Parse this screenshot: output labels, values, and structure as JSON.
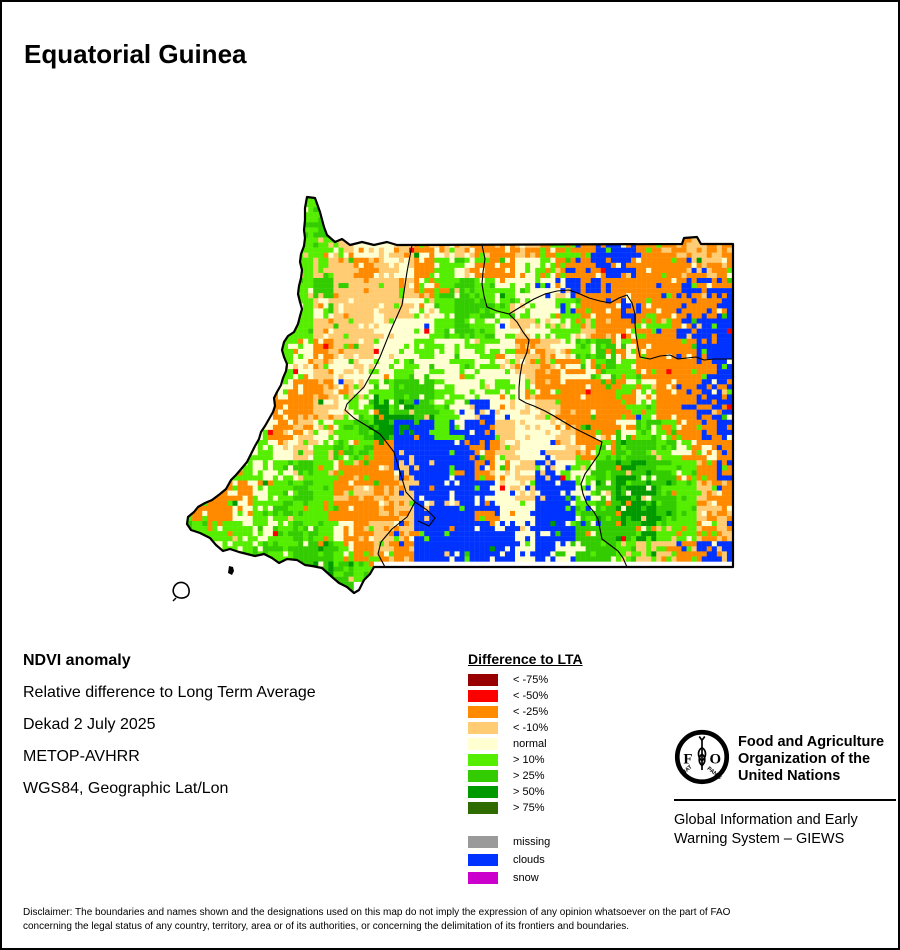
{
  "title": "Equatorial Guinea",
  "map": {
    "description": "NDVI anomaly raster map of Equatorial Guinea",
    "seed": 1337,
    "palette": {
      "d": "#990000",
      "r": "#FF0000",
      "o": "#FF8A00",
      "t": "#FFCC73",
      "n": "#FFFFD2",
      "g": "#55EE00",
      "G": "#33CC00",
      "D": "#009900",
      "F": "#2E6B00",
      "b": "#0033FF",
      "m": "#9A9A9A",
      "s": "#CC00CC"
    },
    "grid": [
      "......gg....................",
      "......gG....................",
      "......ggtnntontootogobbootot",
      "......gttotnognoongoobboooto",
      "......gGttttogGgngnbboooobbo",
      "......gnttttngGGgnngooboooob",
      ".....ggtttnnngGgntngtoogobbb",
      ".....gnottnngnngnotngGnooobb",
      ".....gntnnngnngnntoonGgoooob",
      ".....nootngGGgnngnoooognoobo",
      ".....ootngDDGgnbnntoooogoobb",
      "....notngGDbbgbbtnntoonGgoob",
      "...ggntgGgobbbbotnntogGGgnoo",
      "...gngGgoootbbbontbngGDGGgob",
      ".noongGgototbbbbntbbnGDDGgto",
      "goongGggoootbbbonnbbgGDDGgto",
      "GgggngGgnotobbbbbnbbGGGDggot",
      "..ngGgGGgotobbbbbnbnGGgttobb",
      "......GDGg..................",
      "........g..................."
    ]
  },
  "legend": {
    "title": "Difference to LTA",
    "items": [
      {
        "key": "d",
        "label": "< -75%"
      },
      {
        "key": "r",
        "label": "< -50%"
      },
      {
        "key": "o",
        "label": "< -25%"
      },
      {
        "key": "t",
        "label": "< -10%"
      },
      {
        "key": "n",
        "label": "normal"
      },
      {
        "key": "g",
        "label": "> 10%"
      },
      {
        "key": "G",
        "label": "> 25%"
      },
      {
        "key": "D",
        "label": "> 50%"
      },
      {
        "key": "F",
        "label": "> 75%"
      }
    ],
    "extra_items": [
      {
        "key": "m",
        "label": "missing"
      },
      {
        "key": "b",
        "label": "clouds"
      },
      {
        "key": "s",
        "label": "snow"
      }
    ]
  },
  "info": {
    "heading": "NDVI anomaly",
    "lines": [
      "Relative difference to Long Term Average",
      "Dekad 2 July 2025",
      "METOP-AVHRR",
      "WGS84, Geographic Lat/Lon"
    ]
  },
  "branding": {
    "logo": {
      "left_letter": "F",
      "right_letter": "O",
      "motto_left": "FIAT",
      "motto_right": "PANIS"
    },
    "org_lines": [
      "Food and Agriculture",
      "Organization of the",
      "United Nations"
    ],
    "giews_lines": [
      "Global Information and Early",
      "Warning System – GIEWS"
    ]
  },
  "disclaimer": {
    "line1": "Disclaimer: The boundaries and names shown and the designations used on this map do not imply the expression of any opinion whatsoever on the part of FAO",
    "line2": "concerning the legal status of any country, territory, area or of its authorities, or concerning the delimitation of its frontiers and boundaries."
  }
}
